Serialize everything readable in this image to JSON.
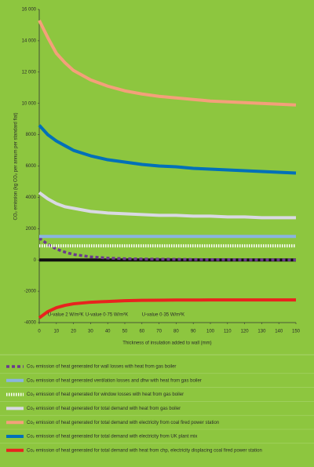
{
  "chart_data": {
    "type": "line",
    "y_label": "CO₂ emission (kg CO₂ per annum per standard flat)",
    "x_label": "Thickness of insulation added to wall (mm)",
    "x": [
      0,
      5,
      10,
      15,
      20,
      30,
      40,
      50,
      60,
      70,
      80,
      90,
      100,
      110,
      120,
      130,
      140,
      150
    ],
    "xlim": [
      0,
      150
    ],
    "xticks": [
      0,
      10,
      20,
      30,
      40,
      50,
      60,
      70,
      80,
      90,
      100,
      110,
      120,
      130,
      140,
      150
    ],
    "ylim": [
      -4000,
      16000
    ],
    "yticks": [
      -4000,
      -2000,
      0,
      2000,
      4000,
      6000,
      8000,
      {
        "value": 10000,
        "label": "10 000"
      },
      {
        "value": 12000,
        "label": "12 000"
      },
      {
        "value": 14000,
        "label": "14 000"
      },
      {
        "value": 16000,
        "label": "16 000"
      }
    ],
    "annotations": [
      {
        "text": "U-value 2 W/m²K",
        "x": 5,
        "y": -3500
      },
      {
        "text": "U-value 0·75 W/m²K",
        "x": 27,
        "y": -3500
      },
      {
        "text": "U-value 0·35 W/m²K",
        "x": 60,
        "y": -3500
      }
    ],
    "series": [
      {
        "name": "Co₂ emission of heat generated for wall losses with heat from gas boiler",
        "color": "#6b3a8e",
        "line_style": "dotted",
        "values": [
          1400,
          1000,
          700,
          500,
          350,
          200,
          120,
          80,
          60,
          50,
          40,
          30,
          20,
          20,
          10,
          10,
          10,
          0
        ]
      },
      {
        "name": "Co₂ emission of heat generated ventilation losses and dhw with heat from gas boiler",
        "color": "#8ab4e0",
        "line_style": "solid",
        "values": [
          1500,
          1500,
          1500,
          1500,
          1500,
          1500,
          1500,
          1500,
          1500,
          1500,
          1500,
          1500,
          1500,
          1500,
          1500,
          1500,
          1500,
          1500
        ]
      },
      {
        "name": "Co₂ emission of heat generated for window losses with heat from gas boiler",
        "color": "#ffffff",
        "line_style": "dashed",
        "values": [
          900,
          900,
          900,
          900,
          900,
          900,
          900,
          900,
          900,
          900,
          900,
          900,
          900,
          900,
          900,
          900,
          900,
          900
        ]
      },
      {
        "name": "Co₂ emission of heat generated for total demand with heat from gas boiler",
        "color": "#d9d9e3",
        "line_style": "solid",
        "values": [
          4300,
          3900,
          3600,
          3400,
          3300,
          3100,
          3000,
          2950,
          2900,
          2850,
          2850,
          2800,
          2800,
          2750,
          2750,
          2700,
          2700,
          2700
        ]
      },
      {
        "name": "Co₂ emission of heat generated for total demand with electricity from coal fired power station",
        "color": "#f4a07a",
        "line_style": "solid",
        "values": [
          15300,
          14200,
          13200,
          12600,
          12100,
          11500,
          11100,
          10800,
          10600,
          10450,
          10350,
          10250,
          10150,
          10100,
          10050,
          10000,
          9950,
          9900
        ]
      },
      {
        "name": "Co₂ emission of heat generated for total demand with electricity from UK plant mix",
        "color": "#0070b8",
        "line_style": "solid",
        "values": [
          8600,
          8000,
          7600,
          7300,
          7000,
          6650,
          6400,
          6250,
          6100,
          6000,
          5950,
          5850,
          5800,
          5750,
          5700,
          5650,
          5600,
          5550
        ]
      },
      {
        "name": "Co₂ emission of heat generated for total demand with heat from chp, electricity displacing coal fired power station",
        "color": "#e8231e",
        "line_style": "solid",
        "values": [
          -3700,
          -3300,
          -3050,
          -2900,
          -2800,
          -2700,
          -2650,
          -2600,
          -2580,
          -2570,
          -2560,
          -2560,
          -2550,
          -2550,
          -2550,
          -2550,
          -2550,
          -2550
        ]
      }
    ]
  }
}
